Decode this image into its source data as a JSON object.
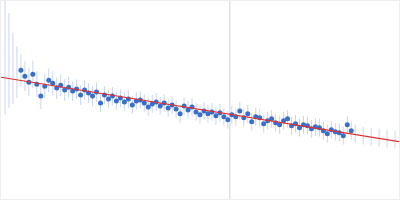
{
  "chart_data": {
    "type": "scatter",
    "tick_labels": false,
    "grid": false,
    "xlim": [
      0,
      400
    ],
    "ylim": [
      0,
      200
    ],
    "vline_x": 230,
    "series": [
      {
        "type": "scatter",
        "color": "#c9d7ee",
        "marker": "none",
        "x": [
          4,
          8,
          12,
          16
        ],
        "values": [
          145,
          140,
          132,
          128
        ],
        "errors": [
          60,
          48,
          36,
          26
        ]
      },
      {
        "type": "scatter",
        "color": "#c9d7ee",
        "marker": "none",
        "x": [
          356,
          364,
          372,
          380,
          388,
          396
        ],
        "values": [
          66,
          64,
          63,
          62,
          61,
          60
        ],
        "errors": [
          9,
          9,
          9,
          9,
          9,
          9
        ]
      },
      {
        "type": "scatter",
        "color": "#3a6ec8",
        "marker": "circle",
        "x": [
          20,
          24,
          28,
          32,
          36,
          40,
          44,
          48,
          52,
          56,
          60,
          64,
          68,
          72,
          76,
          80,
          84,
          88,
          92,
          96,
          100,
          104,
          108,
          112,
          116,
          120,
          124,
          128,
          132,
          136,
          140,
          144,
          148,
          152,
          156,
          160,
          164,
          168,
          172,
          176,
          180,
          184,
          188,
          192,
          196,
          200,
          204,
          208,
          212,
          216,
          220,
          224,
          228,
          232,
          236,
          240,
          244,
          248,
          252,
          256,
          260,
          264,
          268,
          272,
          276,
          280,
          284,
          288,
          292,
          296,
          300,
          304,
          308,
          312,
          316,
          320,
          324,
          328,
          332,
          336,
          340,
          344,
          348,
          352
        ],
        "values": [
          130,
          124,
          118,
          126,
          116,
          104,
          114,
          120,
          117,
          112,
          115,
          110,
          113,
          109,
          111,
          105,
          110,
          107,
          104,
          108,
          97,
          105,
          101,
          104,
          99,
          102,
          98,
          101,
          95,
          99,
          100,
          97,
          93,
          96,
          98,
          94,
          97,
          92,
          95,
          91,
          86,
          94,
          90,
          93,
          88,
          85,
          89,
          86,
          88,
          84,
          87,
          83,
          80,
          85,
          83,
          89,
          82,
          86,
          78,
          83,
          82,
          76,
          79,
          81,
          77,
          75,
          79,
          81,
          74,
          76,
          72,
          75,
          74,
          71,
          73,
          72,
          69,
          66,
          70,
          68,
          67,
          64,
          75,
          69
        ],
        "errors": [
          16,
          15,
          14,
          14,
          13,
          13,
          12,
          12,
          12,
          11,
          11,
          11,
          11,
          10,
          10,
          10,
          10,
          10,
          10,
          10,
          9,
          9,
          9,
          9,
          9,
          9,
          9,
          9,
          9,
          9,
          9,
          9,
          9,
          9,
          9,
          9,
          9,
          9,
          9,
          9,
          9,
          9,
          9,
          9,
          9,
          9,
          9,
          9,
          9,
          9,
          9,
          9,
          9,
          9,
          9,
          9,
          9,
          9,
          9,
          9,
          9,
          9,
          9,
          9,
          9,
          9,
          9,
          9,
          9,
          9,
          9,
          9,
          9,
          9,
          9,
          9,
          9,
          9,
          9,
          9,
          9,
          9,
          9,
          9
        ]
      },
      {
        "type": "line",
        "color": "#e03030",
        "line_style": "solid",
        "x": [
          0,
          400
        ],
        "values": [
          123,
          58
        ]
      }
    ]
  }
}
